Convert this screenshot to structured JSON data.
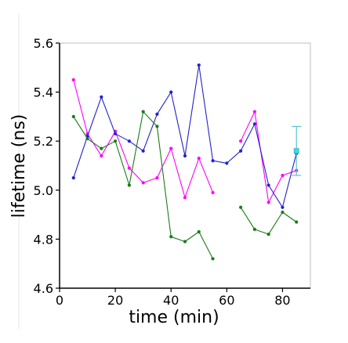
{
  "chart_data": {
    "type": "line",
    "title": "",
    "xlabel": "time (min)",
    "ylabel": "lifetime (ns)",
    "xlim": [
      0,
      90
    ],
    "ylim": [
      4.6,
      5.6
    ],
    "xticks": [
      0,
      20,
      40,
      60,
      80
    ],
    "yticks": [
      4.6,
      4.8,
      5.0,
      5.2,
      5.4,
      5.6
    ],
    "xtick_labels": [
      "0",
      "20",
      "40",
      "60",
      "80"
    ],
    "ytick_labels": [
      "4.6",
      "4.8",
      "5.0",
      "5.2",
      "5.4",
      "5.6"
    ],
    "grid": false,
    "series": [
      {
        "color": "#ff00ff",
        "points": [
          [
            5,
            5.45
          ],
          [
            10,
            5.23
          ],
          [
            15,
            5.14
          ],
          [
            20,
            5.24
          ],
          [
            25,
            5.09
          ],
          [
            30,
            5.03
          ],
          [
            35,
            5.05
          ],
          [
            40,
            5.17
          ],
          [
            45,
            4.97
          ],
          [
            50,
            5.13
          ],
          [
            55,
            4.99
          ],
          null,
          [
            65,
            5.2
          ],
          [
            70,
            5.32
          ],
          [
            75,
            4.95
          ],
          [
            80,
            5.06
          ],
          [
            85,
            5.08
          ]
        ]
      },
      {
        "color": "#2222cc",
        "points": [
          [
            5,
            5.05
          ],
          [
            10,
            5.22
          ],
          [
            15,
            5.38
          ],
          [
            20,
            5.23
          ],
          [
            25,
            5.2
          ],
          [
            30,
            5.16
          ],
          [
            35,
            5.31
          ],
          [
            40,
            5.4
          ],
          [
            45,
            5.14
          ],
          [
            50,
            5.51
          ],
          [
            55,
            5.12
          ],
          [
            60,
            5.11
          ],
          [
            65,
            5.16
          ],
          [
            70,
            5.27
          ],
          [
            75,
            5.02
          ],
          [
            80,
            4.93
          ],
          [
            85,
            5.15
          ]
        ]
      },
      {
        "color": "#1a7a1a",
        "points": [
          [
            5,
            5.3
          ],
          [
            10,
            5.21
          ],
          [
            15,
            5.17
          ],
          [
            20,
            5.2
          ],
          [
            25,
            5.02
          ],
          [
            30,
            5.32
          ],
          [
            35,
            5.26
          ],
          [
            40,
            4.81
          ],
          [
            45,
            4.79
          ],
          [
            50,
            4.83
          ],
          [
            55,
            4.72
          ],
          null,
          [
            65,
            4.93
          ],
          [
            70,
            4.84
          ],
          [
            75,
            4.82
          ],
          [
            80,
            4.91
          ],
          [
            85,
            4.87
          ]
        ]
      }
    ],
    "errorbar": {
      "color": "#5bc4cf",
      "x": 85,
      "y": 5.16,
      "ylow": 5.06,
      "yhigh": 5.26
    }
  }
}
